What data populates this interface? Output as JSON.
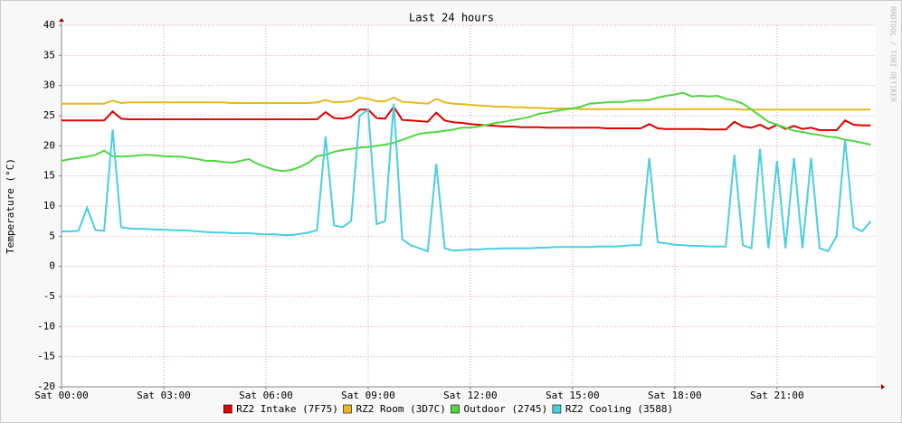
{
  "chart_data": {
    "type": "line",
    "title": "Last 24 hours",
    "y_label": "Temperature (°C)",
    "watermark": "RRDTOOL / TOBI OETIKER",
    "x": [
      0,
      0.25,
      0.5,
      0.75,
      1,
      1.25,
      1.5,
      1.75,
      2,
      2.25,
      2.5,
      2.75,
      3,
      3.25,
      3.5,
      3.75,
      4,
      4.25,
      4.5,
      4.75,
      5,
      5.25,
      5.5,
      5.75,
      6,
      6.25,
      6.5,
      6.75,
      7,
      7.25,
      7.5,
      7.75,
      8,
      8.25,
      8.5,
      8.75,
      9,
      9.25,
      9.5,
      9.75,
      10,
      10.25,
      10.5,
      10.75,
      11,
      11.25,
      11.5,
      11.75,
      12,
      12.25,
      12.5,
      12.75,
      13,
      13.25,
      13.5,
      13.75,
      14,
      14.25,
      14.5,
      14.75,
      15,
      15.25,
      15.5,
      15.75,
      16,
      16.25,
      16.5,
      16.75,
      17,
      17.25,
      17.5,
      17.75,
      18,
      18.25,
      18.5,
      18.75,
      19,
      19.25,
      19.5,
      19.75,
      20,
      20.25,
      20.5,
      20.75,
      21,
      21.25,
      21.5,
      21.75,
      22,
      22.25,
      22.5,
      22.75,
      23,
      23.25,
      23.5,
      23.75
    ],
    "xlim": [
      0,
      23.9
    ],
    "xticks": [
      {
        "value": 0,
        "label": "Sat 00:00"
      },
      {
        "value": 3,
        "label": "Sat 03:00"
      },
      {
        "value": 6,
        "label": "Sat 06:00"
      },
      {
        "value": 9,
        "label": "Sat 09:00"
      },
      {
        "value": 12,
        "label": "Sat 12:00"
      },
      {
        "value": 15,
        "label": "Sat 15:00"
      },
      {
        "value": 18,
        "label": "Sat 18:00"
      },
      {
        "value": 21,
        "label": "Sat 21:00"
      }
    ],
    "ylim": [
      -20,
      40
    ],
    "yticks": [
      -20,
      -15,
      -10,
      -5,
      0,
      5,
      10,
      15,
      20,
      25,
      30,
      35,
      40
    ],
    "grid": true,
    "series": [
      {
        "name": "RZ2 Intake (7F75)",
        "color": "#e00000",
        "values": [
          24.2,
          24.2,
          24.2,
          24.2,
          24.2,
          24.2,
          25.7,
          24.5,
          24.4,
          24.4,
          24.4,
          24.4,
          24.4,
          24.4,
          24.4,
          24.4,
          24.4,
          24.4,
          24.4,
          24.4,
          24.4,
          24.4,
          24.4,
          24.4,
          24.4,
          24.4,
          24.4,
          24.4,
          24.4,
          24.4,
          24.4,
          25.6,
          24.6,
          24.5,
          24.8,
          26,
          26,
          24.6,
          24.5,
          26.5,
          24.3,
          24.2,
          24.1,
          24,
          25.5,
          24.2,
          23.9,
          23.8,
          23.6,
          23.5,
          23.4,
          23.3,
          23.2,
          23.2,
          23.1,
          23.1,
          23.1,
          23,
          23,
          23,
          23,
          23,
          23,
          23,
          22.9,
          22.9,
          22.9,
          22.9,
          22.9,
          23.6,
          22.9,
          22.8,
          22.8,
          22.8,
          22.8,
          22.8,
          22.7,
          22.7,
          22.7,
          24,
          23.2,
          23,
          23.5,
          22.8,
          23.5,
          22.8,
          23.3,
          22.8,
          23,
          22.6,
          22.6,
          22.6,
          24.2,
          23.5,
          23.4,
          23.4
        ]
      },
      {
        "name": "RZ2 Room (3D7C)",
        "color": "#e8b820",
        "values": [
          27,
          27,
          27,
          27,
          27,
          27,
          27.5,
          27.1,
          27.2,
          27.2,
          27.2,
          27.2,
          27.2,
          27.2,
          27.2,
          27.2,
          27.2,
          27.2,
          27.2,
          27.2,
          27.1,
          27.1,
          27.1,
          27.1,
          27.1,
          27.1,
          27.1,
          27.1,
          27.1,
          27.1,
          27.2,
          27.6,
          27.2,
          27.3,
          27.4,
          28,
          27.8,
          27.4,
          27.4,
          28,
          27.3,
          27.2,
          27.1,
          27,
          27.8,
          27.2,
          27,
          26.9,
          26.8,
          26.7,
          26.6,
          26.5,
          26.5,
          26.4,
          26.4,
          26.3,
          26.3,
          26.2,
          26.2,
          26.2,
          26.2,
          26.1,
          26.1,
          26.1,
          26.1,
          26.1,
          26.1,
          26.1,
          26.1,
          26.1,
          26.1,
          26.1,
          26.1,
          26.1,
          26.1,
          26.1,
          26.1,
          26.1,
          26.1,
          26.1,
          26,
          26,
          26,
          26,
          26,
          26,
          26,
          26,
          26,
          26,
          26,
          26,
          26,
          26,
          26,
          26
        ]
      },
      {
        "name": "Outdoor (2745)",
        "color": "#50d840",
        "values": [
          17.5,
          17.8,
          18,
          18.2,
          18.5,
          19.2,
          18.3,
          18.2,
          18.3,
          18.4,
          18.5,
          18.4,
          18.3,
          18.2,
          18.2,
          18,
          17.8,
          17.5,
          17.5,
          17.3,
          17.2,
          17.5,
          17.8,
          17,
          16.5,
          16,
          15.8,
          16,
          16.5,
          17.2,
          18.3,
          18.5,
          19,
          19.3,
          19.5,
          19.7,
          19.8,
          20,
          20.2,
          20.5,
          21,
          21.5,
          22,
          22.2,
          22.3,
          22.5,
          22.7,
          23,
          23,
          23.2,
          23.5,
          23.8,
          24,
          24.3,
          24.5,
          24.8,
          25.3,
          25.5,
          25.8,
          26,
          26.2,
          26.5,
          27,
          27.1,
          27.2,
          27.3,
          27.3,
          27.5,
          27.5,
          27.6,
          28,
          28.3,
          28.5,
          28.8,
          28.2,
          28.3,
          28.2,
          28.3,
          27.8,
          27.5,
          27,
          26,
          25,
          24,
          23.5,
          23,
          22.5,
          22.3,
          22,
          21.8,
          21.5,
          21.4,
          21,
          20.8,
          20.5,
          20.2
        ]
      },
      {
        "name": "RZ2 Cooling (3588)",
        "color": "#48d0e0",
        "values": [
          5.8,
          5.8,
          5.9,
          9.7,
          6,
          5.9,
          22.7,
          6.5,
          6.3,
          6.2,
          6.2,
          6.1,
          6.1,
          6,
          6,
          5.9,
          5.8,
          5.7,
          5.6,
          5.6,
          5.5,
          5.5,
          5.5,
          5.4,
          5.3,
          5.3,
          5.2,
          5.2,
          5.4,
          5.6,
          6,
          21.5,
          6.8,
          6.5,
          7.5,
          25,
          26,
          7,
          7.5,
          27,
          4.5,
          3.5,
          3,
          2.5,
          17,
          3,
          2.6,
          2.7,
          2.8,
          2.8,
          2.9,
          2.9,
          3,
          3,
          3,
          3,
          3.1,
          3.1,
          3.2,
          3.2,
          3.2,
          3.2,
          3.2,
          3.3,
          3.3,
          3.3,
          3.4,
          3.5,
          3.5,
          18,
          4,
          3.8,
          3.6,
          3.5,
          3.4,
          3.4,
          3.3,
          3.3,
          3.3,
          18.5,
          3.5,
          3,
          19.5,
          3,
          17.5,
          3,
          18,
          3,
          18,
          3,
          2.5,
          5,
          21,
          6.5,
          5.8,
          7.5
        ]
      }
    ]
  }
}
